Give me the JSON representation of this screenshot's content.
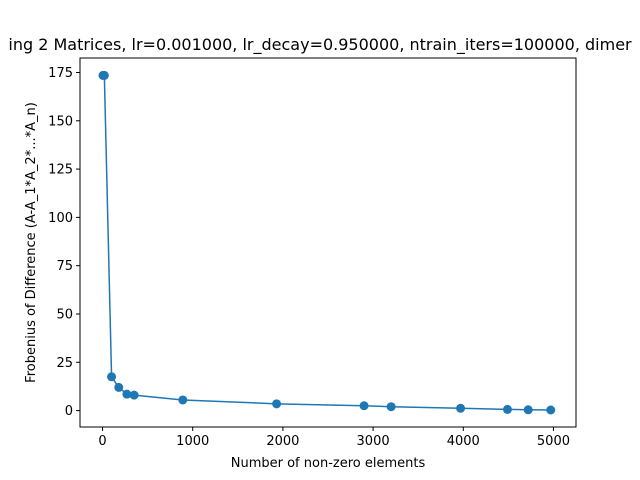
{
  "chart_data": {
    "type": "line",
    "title": "ing 2 Matrices, lr=0.001000, lr_decay=0.950000, ntrain_iters=100000, dimer",
    "xlabel": "Number of non-zero elements",
    "ylabel": "Frobenius of Difference (A-A_1*A_2*...*A_n)",
    "xlim": [
      -250,
      5250
    ],
    "ylim": [
      -8.5,
      182.5
    ],
    "xticks": [
      0,
      1000,
      2000,
      3000,
      4000,
      5000
    ],
    "yticks": [
      0,
      25,
      50,
      75,
      100,
      125,
      150,
      175
    ],
    "grid": false,
    "series": [
      {
        "color": "#1f77b4",
        "marker": "circle",
        "x": [
          5,
          20,
          100,
          180,
          270,
          350,
          890,
          1930,
          2900,
          3200,
          3970,
          4490,
          4720,
          4970
        ],
        "y": [
          173.5,
          173.5,
          17.5,
          12,
          8.5,
          8,
          5.5,
          3.5,
          2.5,
          2,
          1.2,
          0.6,
          0.4,
          0.3
        ]
      }
    ]
  }
}
